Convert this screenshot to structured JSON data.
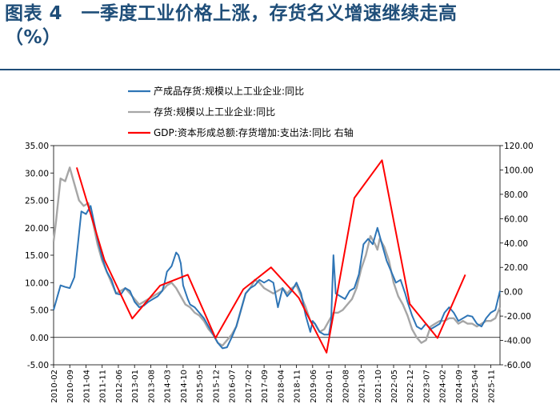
{
  "title": {
    "line1": "图表 4　一季度工业价格上涨，存货名义增速继续走高",
    "line2": "（%）"
  },
  "colors": {
    "title": "#1f4e79",
    "blue": "#2e75b6",
    "gray": "#a6a6a6",
    "red": "#ff0000"
  },
  "chart_data": {
    "type": "line",
    "title": "",
    "xlabel": "",
    "ylabel": "",
    "y_left": {
      "lim": [
        -5,
        35
      ],
      "ticks": [
        "-5.00",
        "0.00",
        "5.00",
        "10.00",
        "15.00",
        "20.00",
        "25.00",
        "30.00",
        "35.00"
      ]
    },
    "y_right": {
      "lim": [
        -60,
        120
      ],
      "ticks": [
        "-60.00",
        "-40.00",
        "-20.00",
        "0.00",
        "20.00",
        "40.00",
        "60.00",
        "80.00",
        "100.00",
        "120.00"
      ]
    },
    "x_tick_labels": [
      "2010-02",
      "2010-09",
      "2011-04",
      "2011-11",
      "2012-06",
      "2013-01",
      "2013-08",
      "2014-03",
      "2014-10",
      "2015-05",
      "2015-12",
      "2016-07",
      "2017-02",
      "2017-09",
      "2018-04",
      "2018-11",
      "2019-06",
      "2020-01",
      "2020-08",
      "2021-03",
      "2021-10",
      "2022-05",
      "2022-12",
      "2023-07",
      "2024-02",
      "2024-09",
      "2025-04",
      "2025-11"
    ],
    "legend": [
      "产成品存货:规模以上工业企业:同比",
      "存货:规模以上工业企业:同比",
      "GDP:资本形成总额:存货增加:支出法:同比 右轴"
    ],
    "series": [
      {
        "name": "产成品存货:规模以上工业企业:同比",
        "axis": "left",
        "x": [
          "2010-02",
          "2010-03",
          "2010-05",
          "2010-07",
          "2010-09",
          "2010-11",
          "2011-01",
          "2011-02",
          "2011-04",
          "2011-06",
          "2011-08",
          "2011-09",
          "2011-11",
          "2012-01",
          "2012-03",
          "2012-05",
          "2012-07",
          "2012-09",
          "2012-11",
          "2013-01",
          "2013-03",
          "2013-05",
          "2013-07",
          "2013-09",
          "2013-11",
          "2014-01",
          "2014-02",
          "2014-03",
          "2014-05",
          "2014-07",
          "2014-08",
          "2014-09",
          "2014-10",
          "2014-12",
          "2015-01",
          "2015-03",
          "2015-05",
          "2015-07",
          "2015-09",
          "2015-11",
          "2016-01",
          "2016-03",
          "2016-05",
          "2016-07",
          "2016-09",
          "2016-11",
          "2017-01",
          "2017-03",
          "2017-05",
          "2017-07",
          "2017-09",
          "2017-11",
          "2018-01",
          "2018-03",
          "2018-05",
          "2018-07",
          "2018-09",
          "2018-11",
          "2019-01",
          "2019-03",
          "2019-05",
          "2019-06",
          "2019-07",
          "2019-09",
          "2019-11",
          "2020-01",
          "2020-02",
          "2020-03",
          "2020-04",
          "2020-06",
          "2020-08",
          "2020-10",
          "2020-12",
          "2021-02",
          "2021-04",
          "2021-06",
          "2021-08",
          "2021-09",
          "2021-10",
          "2021-12",
          "2022-02",
          "2022-04",
          "2022-06",
          "2022-08",
          "2022-10",
          "2022-11",
          "2023-01",
          "2023-03",
          "2023-05",
          "2023-07",
          "2023-09",
          "2023-11",
          "2024-01",
          "2024-03",
          "2024-05",
          "2024-07",
          "2024-09",
          "2024-11",
          "2025-01",
          "2025-03",
          "2025-05",
          "2025-07",
          "2025-09",
          "2025-11",
          "2026-01",
          "2026-03"
        ],
        "values": [
          5.0,
          6.5,
          9.5,
          9.2,
          9.0,
          11.0,
          19.0,
          23.0,
          22.5,
          24.0,
          20.0,
          18.0,
          14.5,
          12.0,
          10.5,
          8.0,
          7.8,
          9.0,
          8.5,
          6.5,
          5.5,
          5.8,
          6.5,
          7.0,
          7.5,
          8.5,
          10.0,
          12.0,
          13.0,
          15.5,
          15.0,
          13.5,
          9.5,
          7.0,
          6.0,
          5.5,
          4.5,
          3.5,
          2.0,
          0.5,
          -1.0,
          -2.0,
          -1.8,
          0.0,
          2.0,
          5.0,
          8.0,
          9.0,
          9.5,
          10.5,
          10.0,
          10.5,
          10.0,
          5.5,
          9.0,
          7.5,
          8.5,
          10.0,
          8.0,
          4.0,
          1.0,
          3.0,
          2.5,
          1.0,
          0.5,
          0.5,
          3.0,
          15.0,
          8.0,
          7.5,
          7.0,
          8.5,
          9.0,
          11.5,
          17.0,
          18.0,
          17.0,
          18.5,
          20.0,
          17.0,
          14.0,
          12.0,
          10.0,
          10.5,
          8.0,
          6.5,
          4.0,
          2.0,
          1.5,
          2.5,
          1.5,
          2.0,
          2.5,
          4.5,
          5.5,
          4.5,
          3.0,
          3.5,
          4.0,
          3.8,
          2.5,
          2.0,
          3.5,
          4.5,
          5.0,
          8.5
        ]
      },
      {
        "name": "存货:规模以上工业企业:同比",
        "axis": "left",
        "x": [
          "2010-02",
          "2010-03",
          "2010-05",
          "2010-07",
          "2010-09",
          "2010-11",
          "2011-01",
          "2011-03",
          "2011-05",
          "2011-07",
          "2011-09",
          "2011-11",
          "2012-01",
          "2012-03",
          "2012-05",
          "2012-07",
          "2012-09",
          "2012-11",
          "2013-01",
          "2013-03",
          "2013-05",
          "2013-07",
          "2013-09",
          "2013-11",
          "2014-01",
          "2014-03",
          "2014-05",
          "2014-07",
          "2014-09",
          "2014-11",
          "2015-01",
          "2015-03",
          "2015-05",
          "2015-07",
          "2015-09",
          "2015-11",
          "2016-01",
          "2016-03",
          "2016-05",
          "2016-07",
          "2016-09",
          "2016-11",
          "2017-01",
          "2017-03",
          "2017-05",
          "2017-07",
          "2017-09",
          "2017-11",
          "2018-01",
          "2018-03",
          "2018-05",
          "2018-07",
          "2018-09",
          "2018-11",
          "2019-01",
          "2019-03",
          "2019-05",
          "2019-07",
          "2019-09",
          "2019-11",
          "2020-01",
          "2020-03",
          "2020-05",
          "2020-07",
          "2020-09",
          "2020-11",
          "2021-01",
          "2021-03",
          "2021-05",
          "2021-07",
          "2021-09",
          "2021-10",
          "2021-11",
          "2022-01",
          "2022-03",
          "2022-05",
          "2022-07",
          "2022-09",
          "2022-11",
          "2023-01",
          "2023-03",
          "2023-05",
          "2023-07",
          "2023-09",
          "2023-11",
          "2024-01",
          "2024-03",
          "2024-05",
          "2024-07",
          "2024-09",
          "2024-11",
          "2025-01",
          "2025-03",
          "2025-05",
          "2025-07",
          "2025-09",
          "2025-11",
          "2026-01",
          "2026-03"
        ],
        "values": [
          17.5,
          21.0,
          29.0,
          28.5,
          31.0,
          28.0,
          25.0,
          24.0,
          24.5,
          21.0,
          17.0,
          14.0,
          12.0,
          10.0,
          8.0,
          8.5,
          9.0,
          8.0,
          7.0,
          6.0,
          6.5,
          7.0,
          7.5,
          8.0,
          8.5,
          9.5,
          10.0,
          9.0,
          7.5,
          6.0,
          5.5,
          4.5,
          4.0,
          3.0,
          1.5,
          0.5,
          -1.0,
          -1.5,
          -0.5,
          0.5,
          2.0,
          5.0,
          8.0,
          9.0,
          10.5,
          10.0,
          9.0,
          8.5,
          8.0,
          8.5,
          9.0,
          8.0,
          9.0,
          9.5,
          7.5,
          5.5,
          3.0,
          2.5,
          1.0,
          1.5,
          3.0,
          4.5,
          4.5,
          5.0,
          6.0,
          7.0,
          9.0,
          12.5,
          15.0,
          18.5,
          17.0,
          16.0,
          18.0,
          16.5,
          14.0,
          10.0,
          7.5,
          6.0,
          4.0,
          1.5,
          0.0,
          -1.0,
          -0.5,
          2.0,
          2.5,
          3.0,
          3.0,
          3.5,
          3.5,
          2.5,
          3.0,
          2.5,
          2.5,
          2.0,
          2.5,
          3.0,
          3.0,
          3.5,
          5.5
        ]
      },
      {
        "name": "GDP:资本形成总额:存货增加:支出法:同比",
        "axis": "right",
        "x": [
          "2010-12",
          "2011-12",
          "2012-12",
          "2013-12",
          "2014-12",
          "2015-12",
          "2016-12",
          "2017-12",
          "2018-12",
          "2019-12",
          "2020-12",
          "2021-12",
          "2022-12",
          "2023-12",
          "2024-12"
        ],
        "values": [
          102,
          26,
          -22,
          5,
          14,
          -38,
          2,
          20,
          -5,
          -50,
          77,
          108,
          -10,
          -38,
          14
        ]
      }
    ]
  }
}
